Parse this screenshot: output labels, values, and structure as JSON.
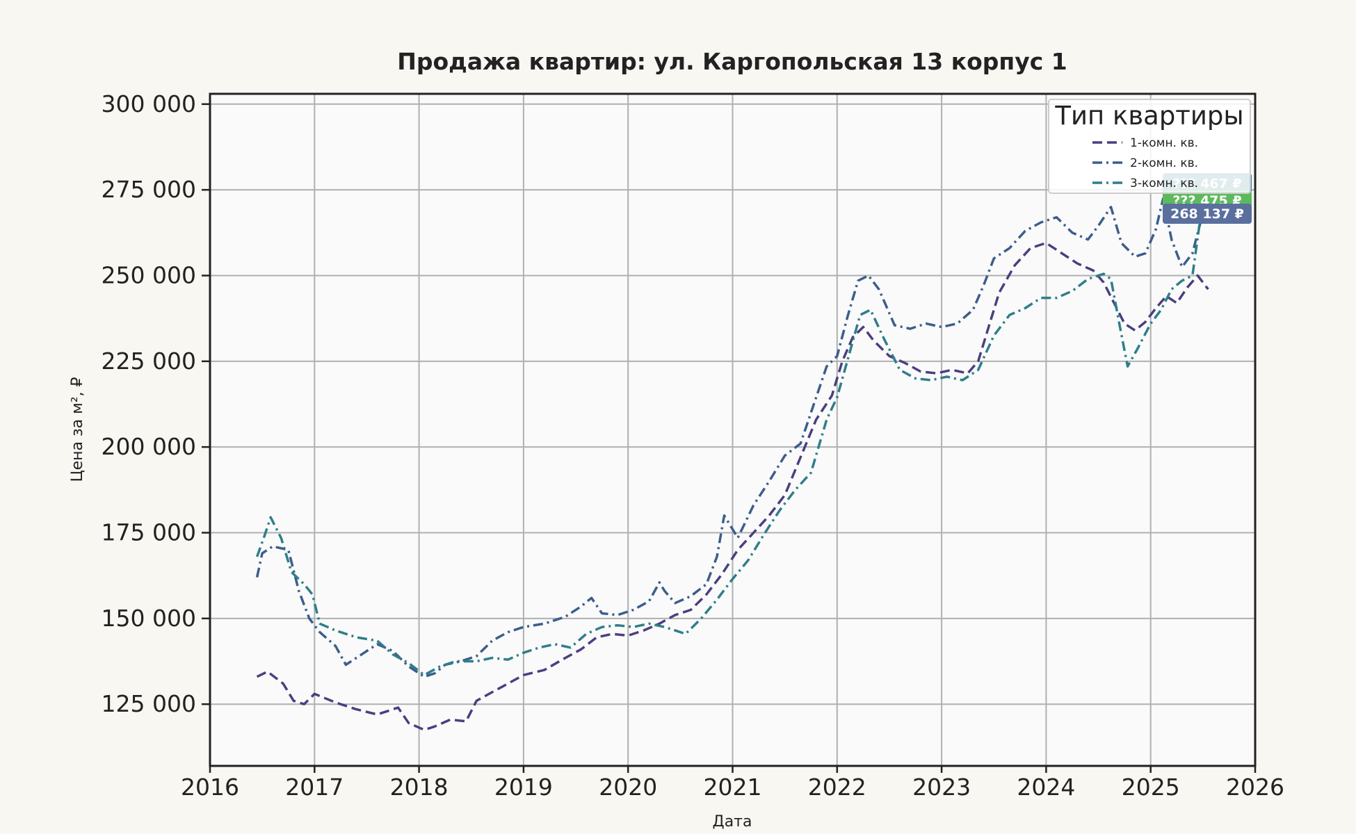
{
  "chart_data": {
    "type": "line",
    "title": "Продажа квартир: ул. Каргопольская 13 корпус 1",
    "xlabel": "Дата",
    "ylabel": "Цена за м², ₽",
    "xlim": [
      2016,
      2026
    ],
    "ylim": [
      107000,
      303000
    ],
    "x_ticks": [
      2016,
      2017,
      2018,
      2019,
      2020,
      2021,
      2022,
      2023,
      2024,
      2025,
      2026
    ],
    "x_tick_labels": [
      "2016",
      "2017",
      "2018",
      "2019",
      "2020",
      "2021",
      "2022",
      "2023",
      "2024",
      "2025",
      "2026"
    ],
    "y_ticks": [
      125000,
      150000,
      175000,
      200000,
      225000,
      250000,
      275000,
      300000
    ],
    "y_tick_labels": [
      "125 000",
      "150 000",
      "175 000",
      "200 000",
      "225 000",
      "250 000",
      "275 000",
      "300 000"
    ],
    "grid": true,
    "legend": {
      "title": "Тип квартиры",
      "placement": "top-right"
    },
    "series": [
      {
        "name": "1-комн. кв.",
        "color": "#4a3f7f",
        "dash": "dashed",
        "points": [
          [
            2016.45,
            133000
          ],
          [
            2016.55,
            134500
          ],
          [
            2016.7,
            131000
          ],
          [
            2016.8,
            126000
          ],
          [
            2016.9,
            125000
          ],
          [
            2017.0,
            128000
          ],
          [
            2017.2,
            125500
          ],
          [
            2017.4,
            123500
          ],
          [
            2017.6,
            122000
          ],
          [
            2017.8,
            124000
          ],
          [
            2017.9,
            119500
          ],
          [
            2018.05,
            117500
          ],
          [
            2018.15,
            118500
          ],
          [
            2018.3,
            120500
          ],
          [
            2018.45,
            120000
          ],
          [
            2018.55,
            126000
          ],
          [
            2018.7,
            128500
          ],
          [
            2018.85,
            131000
          ],
          [
            2019.0,
            133500
          ],
          [
            2019.2,
            135000
          ],
          [
            2019.4,
            138500
          ],
          [
            2019.55,
            141000
          ],
          [
            2019.7,
            144500
          ],
          [
            2019.85,
            145500
          ],
          [
            2020.0,
            145000
          ],
          [
            2020.15,
            146500
          ],
          [
            2020.3,
            148500
          ],
          [
            2020.45,
            151000
          ],
          [
            2020.6,
            152500
          ],
          [
            2020.75,
            157000
          ],
          [
            2020.9,
            163000
          ],
          [
            2021.05,
            170000
          ],
          [
            2021.2,
            175000
          ],
          [
            2021.35,
            180000
          ],
          [
            2021.5,
            186000
          ],
          [
            2021.65,
            197000
          ],
          [
            2021.8,
            208000
          ],
          [
            2021.95,
            215000
          ],
          [
            2022.05,
            225000
          ],
          [
            2022.15,
            232000
          ],
          [
            2022.25,
            235000
          ],
          [
            2022.35,
            231000
          ],
          [
            2022.5,
            226500
          ],
          [
            2022.65,
            224500
          ],
          [
            2022.8,
            222000
          ],
          [
            2022.95,
            221500
          ],
          [
            2023.1,
            222500
          ],
          [
            2023.25,
            221500
          ],
          [
            2023.35,
            225000
          ],
          [
            2023.45,
            235000
          ],
          [
            2023.55,
            245000
          ],
          [
            2023.7,
            253000
          ],
          [
            2023.85,
            258000
          ],
          [
            2024.0,
            259500
          ],
          [
            2024.15,
            256500
          ],
          [
            2024.3,
            253500
          ],
          [
            2024.45,
            251500
          ],
          [
            2024.55,
            248000
          ],
          [
            2024.65,
            242000
          ],
          [
            2024.75,
            236000
          ],
          [
            2024.85,
            234000
          ],
          [
            2024.95,
            236500
          ],
          [
            2025.05,
            240500
          ],
          [
            2025.15,
            244000
          ],
          [
            2025.25,
            242000
          ],
          [
            2025.35,
            246500
          ],
          [
            2025.45,
            250000
          ],
          [
            2025.55,
            246000
          ]
        ]
      },
      {
        "name": "2-комн. кв.",
        "color": "#3b5e8c",
        "dash": "dashdot",
        "points": [
          [
            2016.45,
            162000
          ],
          [
            2016.5,
            169000
          ],
          [
            2016.6,
            171000
          ],
          [
            2016.75,
            170000
          ],
          [
            2016.85,
            158000
          ],
          [
            2016.95,
            150000
          ],
          [
            2017.05,
            146000
          ],
          [
            2017.2,
            142000
          ],
          [
            2017.3,
            136500
          ],
          [
            2017.45,
            139500
          ],
          [
            2017.6,
            142500
          ],
          [
            2017.75,
            140500
          ],
          [
            2017.9,
            136000
          ],
          [
            2018.05,
            133000
          ],
          [
            2018.15,
            134000
          ],
          [
            2018.25,
            136500
          ],
          [
            2018.4,
            137500
          ],
          [
            2018.55,
            139000
          ],
          [
            2018.7,
            143500
          ],
          [
            2018.85,
            146000
          ],
          [
            2019.0,
            147500
          ],
          [
            2019.2,
            148500
          ],
          [
            2019.4,
            150500
          ],
          [
            2019.55,
            153500
          ],
          [
            2019.65,
            156000
          ],
          [
            2019.75,
            151500
          ],
          [
            2019.9,
            151000
          ],
          [
            2020.05,
            152500
          ],
          [
            2020.2,
            155000
          ],
          [
            2020.3,
            160500
          ],
          [
            2020.35,
            158000
          ],
          [
            2020.45,
            154500
          ],
          [
            2020.6,
            156500
          ],
          [
            2020.75,
            160000
          ],
          [
            2020.85,
            168000
          ],
          [
            2020.92,
            180000
          ],
          [
            2021.05,
            173500
          ],
          [
            2021.2,
            183000
          ],
          [
            2021.35,
            190000
          ],
          [
            2021.5,
            197500
          ],
          [
            2021.65,
            201000
          ],
          [
            2021.8,
            214500
          ],
          [
            2021.9,
            223500
          ],
          [
            2022.0,
            226500
          ],
          [
            2022.1,
            238000
          ],
          [
            2022.2,
            248500
          ],
          [
            2022.3,
            250000
          ],
          [
            2022.4,
            246000
          ],
          [
            2022.55,
            235500
          ],
          [
            2022.7,
            234500
          ],
          [
            2022.85,
            236000
          ],
          [
            2023.0,
            235000
          ],
          [
            2023.15,
            236000
          ],
          [
            2023.3,
            240000
          ],
          [
            2023.4,
            247000
          ],
          [
            2023.5,
            255000
          ],
          [
            2023.65,
            258000
          ],
          [
            2023.8,
            263000
          ],
          [
            2023.95,
            265500
          ],
          [
            2024.1,
            267000
          ],
          [
            2024.25,
            262500
          ],
          [
            2024.4,
            260500
          ],
          [
            2024.5,
            264500
          ],
          [
            2024.62,
            270000
          ],
          [
            2024.72,
            259500
          ],
          [
            2024.85,
            255500
          ],
          [
            2024.95,
            256500
          ],
          [
            2025.05,
            263500
          ],
          [
            2025.12,
            272500
          ],
          [
            2025.2,
            260500
          ],
          [
            2025.3,
            252500
          ],
          [
            2025.4,
            256500
          ],
          [
            2025.5,
            268137
          ]
        ]
      },
      {
        "name": "3-комн. кв.",
        "color": "#2f7e8a",
        "dash": "dashdot",
        "points": [
          [
            2016.45,
            168000
          ],
          [
            2016.52,
            174000
          ],
          [
            2016.58,
            179500
          ],
          [
            2016.68,
            173500
          ],
          [
            2016.78,
            163500
          ],
          [
            2016.9,
            160000
          ],
          [
            2016.98,
            157000
          ],
          [
            2017.05,
            148500
          ],
          [
            2017.2,
            146500
          ],
          [
            2017.4,
            144500
          ],
          [
            2017.6,
            143500
          ],
          [
            2017.75,
            139500
          ],
          [
            2017.9,
            137000
          ],
          [
            2018.05,
            133500
          ],
          [
            2018.2,
            136000
          ],
          [
            2018.35,
            137500
          ],
          [
            2018.55,
            137500
          ],
          [
            2018.7,
            138500
          ],
          [
            2018.85,
            138000
          ],
          [
            2019.0,
            140000
          ],
          [
            2019.15,
            141500
          ],
          [
            2019.3,
            142500
          ],
          [
            2019.45,
            141500
          ],
          [
            2019.6,
            145500
          ],
          [
            2019.75,
            147500
          ],
          [
            2019.9,
            148000
          ],
          [
            2020.05,
            147500
          ],
          [
            2020.2,
            148500
          ],
          [
            2020.35,
            147500
          ],
          [
            2020.45,
            146500
          ],
          [
            2020.55,
            145500
          ],
          [
            2020.7,
            150000
          ],
          [
            2020.85,
            155500
          ],
          [
            2021.0,
            161500
          ],
          [
            2021.15,
            167000
          ],
          [
            2021.3,
            174500
          ],
          [
            2021.45,
            181500
          ],
          [
            2021.6,
            187500
          ],
          [
            2021.75,
            192500
          ],
          [
            2021.9,
            208000
          ],
          [
            2022.0,
            214500
          ],
          [
            2022.12,
            227500
          ],
          [
            2022.22,
            238500
          ],
          [
            2022.32,
            240000
          ],
          [
            2022.45,
            231500
          ],
          [
            2022.6,
            222500
          ],
          [
            2022.75,
            220000
          ],
          [
            2022.9,
            219500
          ],
          [
            2023.05,
            220500
          ],
          [
            2023.2,
            219500
          ],
          [
            2023.35,
            222500
          ],
          [
            2023.5,
            232500
          ],
          [
            2023.65,
            238500
          ],
          [
            2023.8,
            240500
          ],
          [
            2023.95,
            243500
          ],
          [
            2024.1,
            243500
          ],
          [
            2024.25,
            245500
          ],
          [
            2024.4,
            249000
          ],
          [
            2024.55,
            250500
          ],
          [
            2024.62,
            249000
          ],
          [
            2024.7,
            236000
          ],
          [
            2024.78,
            223500
          ],
          [
            2024.88,
            229000
          ],
          [
            2025.0,
            236000
          ],
          [
            2025.1,
            240000
          ],
          [
            2025.2,
            246000
          ],
          [
            2025.3,
            248500
          ],
          [
            2025.4,
            250000
          ],
          [
            2025.5,
            272000
          ]
        ]
      }
    ],
    "price_tags": [
      {
        "label": "??? 467 ₽",
        "value": 277000,
        "color": "#2f7e8a"
      },
      {
        "label": "??? 475 ₽",
        "value": 272000,
        "color": "#5cba5c"
      },
      {
        "label": "268 137 ₽",
        "value": 268137,
        "color": "#5a6f9e"
      }
    ]
  }
}
